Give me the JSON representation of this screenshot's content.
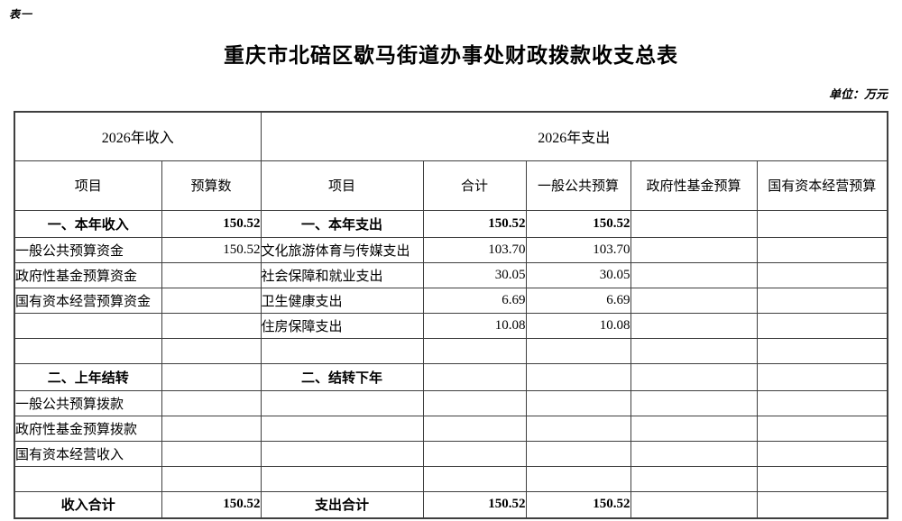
{
  "page": {
    "table_label": "表一",
    "title": "重庆市北碚区歇马街道办事处财政拨款收支总表",
    "unit_note": "单位：万元"
  },
  "colors": {
    "background": "#ffffff",
    "text": "#000000",
    "border": "#3f3f3f"
  },
  "table": {
    "income_header": "2026年收入",
    "expense_header": "2026年支出",
    "columns": [
      "项目",
      "预算数",
      "项目",
      "合计",
      "一般公共预算",
      "政府性基金预算",
      "国有资本经营预算"
    ],
    "rows": [
      {
        "bold": true,
        "cells": [
          "一、本年收入",
          "150.52",
          "一、本年支出",
          "150.52",
          "150.52",
          "",
          ""
        ]
      },
      {
        "bold": false,
        "cells": [
          "一般公共预算资金",
          "150.52",
          "文化旅游体育与传媒支出",
          "103.70",
          "103.70",
          "",
          ""
        ]
      },
      {
        "bold": false,
        "cells": [
          "政府性基金预算资金",
          "",
          "社会保障和就业支出",
          "30.05",
          "30.05",
          "",
          ""
        ]
      },
      {
        "bold": false,
        "cells": [
          "国有资本经营预算资金",
          "",
          "卫生健康支出",
          "6.69",
          "6.69",
          "",
          ""
        ]
      },
      {
        "bold": false,
        "cells": [
          "",
          "",
          "住房保障支出",
          "10.08",
          "10.08",
          "",
          ""
        ]
      },
      {
        "bold": false,
        "cells": [
          "",
          "",
          "",
          "",
          "",
          "",
          ""
        ]
      },
      {
        "bold": true,
        "cells": [
          "二、上年结转",
          "",
          "二、结转下年",
          "",
          "",
          "",
          ""
        ]
      },
      {
        "bold": false,
        "cells": [
          "一般公共预算拨款",
          "",
          "",
          "",
          "",
          "",
          ""
        ]
      },
      {
        "bold": false,
        "cells": [
          "政府性基金预算拨款",
          "",
          "",
          "",
          "",
          "",
          ""
        ]
      },
      {
        "bold": false,
        "cells": [
          "国有资本经营收入",
          "",
          "",
          "",
          "",
          "",
          ""
        ]
      },
      {
        "bold": false,
        "cells": [
          "",
          "",
          "",
          "",
          "",
          "",
          ""
        ]
      },
      {
        "bold": true,
        "cells": [
          "收入合计",
          "150.52",
          "支出合计",
          "150.52",
          "150.52",
          "",
          ""
        ]
      }
    ]
  }
}
